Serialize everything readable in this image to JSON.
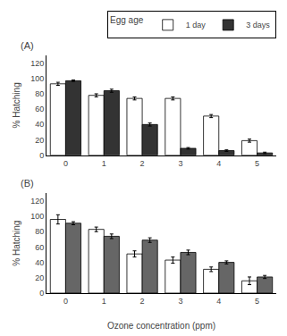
{
  "chart_data": [
    {
      "type": "bar",
      "title": "(A)",
      "categories": [
        "0",
        "1",
        "2",
        "3",
        "4",
        "5"
      ],
      "series": [
        {
          "name": "1 day",
          "color": "white",
          "values": [
            93,
            78,
            74,
            74,
            51,
            19
          ],
          "errors": [
            2,
            2,
            2,
            2,
            2,
            2
          ]
        },
        {
          "name": "3 days",
          "color": "#333333",
          "values": [
            97,
            84,
            40,
            9,
            6,
            3
          ],
          "errors": [
            1,
            2,
            2,
            1,
            1,
            1
          ]
        }
      ],
      "ylabel": "% Hatching",
      "ylim": [
        0,
        130
      ],
      "yticks": [
        0,
        20,
        40,
        60,
        80,
        100,
        120
      ],
      "grid": false,
      "legend": "top right",
      "legend_title": "Egg age"
    },
    {
      "type": "bar",
      "title": "(B)",
      "categories": [
        "0",
        "1",
        "2",
        "3",
        "4",
        "5"
      ],
      "series": [
        {
          "name": "1 day",
          "color": "white",
          "values": [
            96,
            83,
            51,
            43,
            31,
            16
          ],
          "errors": [
            6,
            3,
            4,
            4,
            3,
            5
          ]
        },
        {
          "name": "3 days",
          "color": "#666666",
          "values": [
            91,
            74,
            69,
            53,
            40,
            21
          ],
          "errors": [
            2,
            3,
            3,
            3,
            2,
            2
          ]
        }
      ],
      "ylabel": "% Hatching",
      "xlabel": "Ozone concentration (ppm)",
      "ylim": [
        0,
        130
      ],
      "yticks": [
        0,
        20,
        40,
        60,
        80,
        100,
        120
      ],
      "grid": false
    }
  ]
}
